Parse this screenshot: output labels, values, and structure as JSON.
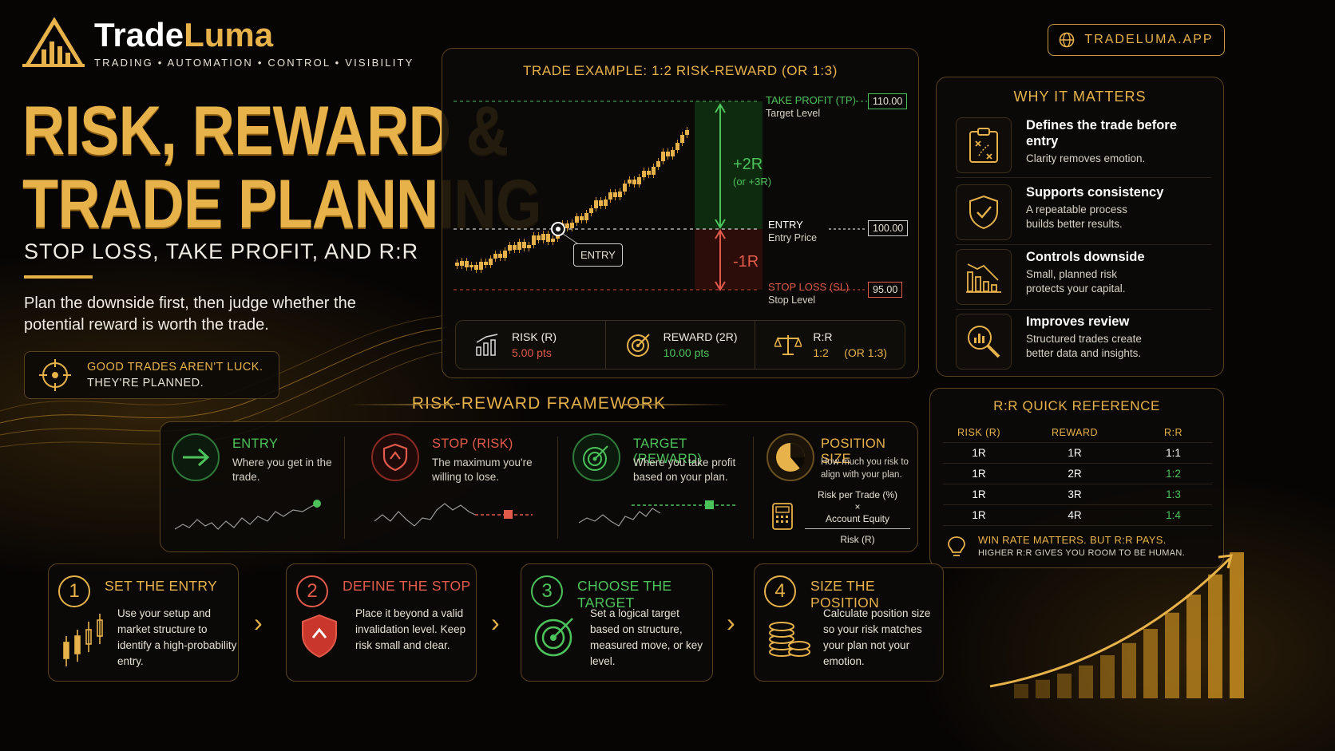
{
  "brand": {
    "name_part1": "Trade",
    "name_part2": "Luma",
    "tagline": "TRADING • AUTOMATION • CONTROL • VISIBILITY",
    "domain": "TRADELUMA.APP"
  },
  "hero": {
    "title_line1": "RISK, REWARD &",
    "title_line2": "TRADE PLANNING",
    "subtitle": "STOP LOSS, TAKE PROFIT, AND R:R",
    "lead": "Plan the downside first, then judge whether the potential reward is worth the trade.",
    "quote_line1": "GOOD TRADES AREN'T LUCK.",
    "quote_line2": "THEY'RE PLANNED."
  },
  "trade_example": {
    "title": "TRADE EXAMPLE: 1:2 RISK-REWARD (OR 1:3)",
    "take_profit": {
      "label": "TAKE PROFIT (TP)",
      "sub": "Target Level",
      "price": "110.00"
    },
    "entry": {
      "label": "ENTRY",
      "sub": "Entry Price",
      "price": "100.00",
      "marker": "ENTRY"
    },
    "stop_loss": {
      "label": "STOP LOSS (SL)",
      "sub": "Stop Level",
      "price": "95.00"
    },
    "reward_tag": "+2R",
    "reward_tag_alt": "(or +3R)",
    "risk_tag": "-1R",
    "stats": [
      {
        "label": "RISK (R)",
        "value": "5.00 pts",
        "color": "#e25a4a",
        "icon": "bar-chart-icon"
      },
      {
        "label": "REWARD (2R)",
        "value": "10.00 pts",
        "color": "#4cc35a",
        "icon": "target-icon"
      },
      {
        "label": "R:R",
        "value": "1:2     (OR 1:3)",
        "color": "#e7b24a",
        "icon": "scale-icon"
      }
    ]
  },
  "why": {
    "title": "WHY IT MATTERS",
    "items": [
      {
        "title": "Defines the trade before entry",
        "desc": "Clarity removes emotion.",
        "icon": "clipboard-plan-icon"
      },
      {
        "title": "Supports consistency",
        "desc": "A repeatable process builds better results.",
        "icon": "shield-check-icon"
      },
      {
        "title": "Controls downside",
        "desc": "Small, planned risk protects your capital.",
        "icon": "declining-bars-icon"
      },
      {
        "title": "Improves review",
        "desc": "Structured trades create better data and insights.",
        "icon": "magnifier-chart-icon"
      }
    ]
  },
  "quick_ref": {
    "title": "R:R QUICK REFERENCE",
    "headers": [
      "RISK (R)",
      "REWARD",
      "R:R"
    ],
    "rows": [
      [
        "1R",
        "1R",
        "1:1"
      ],
      [
        "1R",
        "2R",
        "1:2"
      ],
      [
        "1R",
        "3R",
        "1:3"
      ],
      [
        "1R",
        "4R",
        "1:4"
      ]
    ],
    "tip_main": "WIN RATE MATTERS. BUT R:R PAYS.",
    "tip_sub": "HIGHER R:R GIVES YOU ROOM TO BE HUMAN."
  },
  "framework": {
    "title": "RISK-REWARD FRAMEWORK",
    "items": [
      {
        "title": "ENTRY",
        "desc": "Where you get in the trade.",
        "color": "#4cc35a",
        "icon": "arrow-right-icon"
      },
      {
        "title": "STOP (RISK)",
        "desc": "The maximum you're willing to lose.",
        "color": "#e25a4a",
        "icon": "shield-stop-icon"
      },
      {
        "title": "TARGET (REWARD)",
        "desc": "Where you take profit based on your plan.",
        "color": "#4cc35a",
        "icon": "target-icon"
      },
      {
        "title": "POSITION SIZE",
        "desc": "How much you risk to align with your plan.",
        "color": "#e7b24a",
        "icon": "pie-chart-icon"
      }
    ],
    "formula": {
      "top": "Risk per Trade (%)",
      "op": "×",
      "mid": "Account Equity",
      "bottom": "Risk (R)"
    }
  },
  "steps": [
    {
      "num": "1",
      "title": "SET THE ENTRY",
      "desc": "Use your setup and market structure to identify a high-probability entry.",
      "color": "#e7b24a",
      "icon": "candlesticks-icon"
    },
    {
      "num": "2",
      "title": "DEFINE THE STOP",
      "desc": "Place it beyond a valid invalidation level. Keep risk small and clear.",
      "color": "#e25a4a",
      "icon": "shield-icon"
    },
    {
      "num": "3",
      "title": "CHOOSE THE TARGET",
      "desc": "Set a logical target based on structure, measured move, or key level.",
      "color": "#4cc35a",
      "icon": "target-icon"
    },
    {
      "num": "4",
      "title": "SIZE THE POSITION",
      "desc": "Calculate position size so your risk matches your plan not your emotion.",
      "color": "#e7b24a",
      "icon": "coins-icon"
    }
  ]
}
